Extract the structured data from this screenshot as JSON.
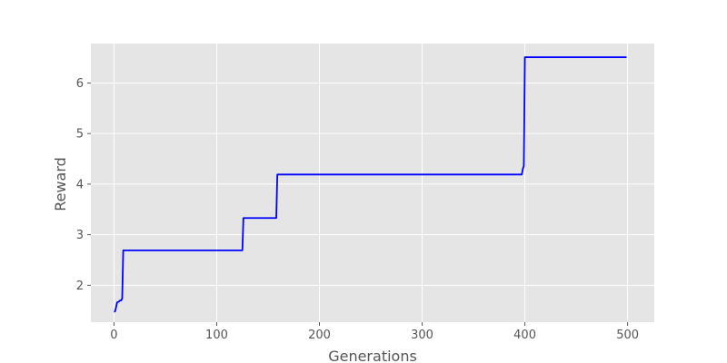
{
  "chart_data": {
    "type": "line",
    "title": "",
    "xlabel": "Generations",
    "ylabel": "Reward",
    "xlim": [
      -22.5,
      526
    ],
    "ylim": [
      1.27,
      6.78
    ],
    "xticks": [
      0,
      100,
      200,
      300,
      400,
      500
    ],
    "yticks": [
      2,
      3,
      4,
      5,
      6
    ],
    "grid": true,
    "style": "ggplot",
    "colors": {
      "plot_background": "#e5e5e5",
      "grid": "#ffffff",
      "line": "#0000ff",
      "text": "#555555"
    },
    "series": [
      {
        "points": [
          [
            0,
            1.48
          ],
          [
            1,
            1.48
          ],
          [
            2,
            1.56
          ],
          [
            3,
            1.66
          ],
          [
            5,
            1.68
          ],
          [
            6,
            1.7
          ],
          [
            7,
            1.7
          ],
          [
            8,
            1.74
          ],
          [
            9,
            2.69
          ],
          [
            10,
            2.69
          ],
          [
            125,
            2.69
          ],
          [
            126,
            3.33
          ],
          [
            158,
            3.33
          ],
          [
            159,
            4.19
          ],
          [
            397,
            4.19
          ],
          [
            398,
            4.3
          ],
          [
            399,
            4.36
          ],
          [
            400,
            6.51
          ],
          [
            499,
            6.51
          ]
        ]
      }
    ]
  }
}
